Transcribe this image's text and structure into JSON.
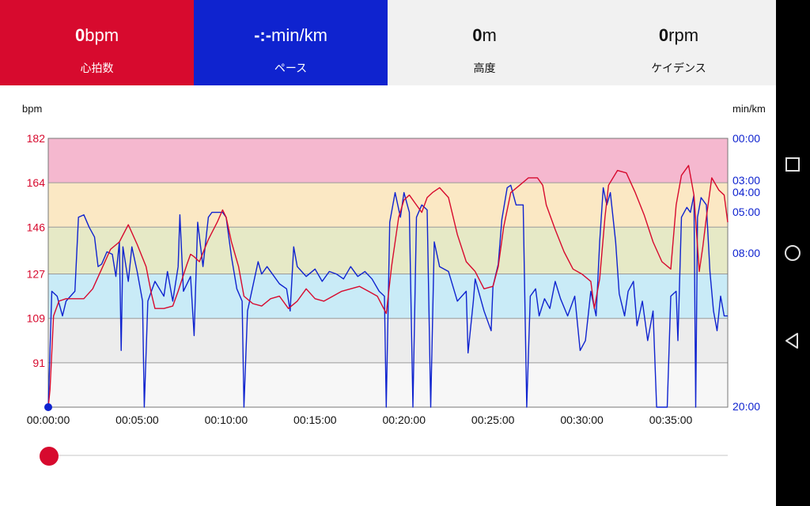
{
  "stats": [
    {
      "value": "0",
      "unit": "bpm",
      "label": "心拍数"
    },
    {
      "value": "-:-",
      "unit": "min/km",
      "label": "ペース"
    },
    {
      "value": "0",
      "unit": "m",
      "label": "高度"
    },
    {
      "value": "0",
      "unit": "rpm",
      "label": "ケイデンス"
    }
  ],
  "axis_units": {
    "left": "bpm",
    "right": "min/km"
  },
  "colors": {
    "heart_rate": "#d70a2e",
    "pace": "#0f23cf",
    "zone5": "#f5b8cf",
    "zone4": "#fbe8c4",
    "zone3": "#e6e9c6",
    "zone2": "#c9ebf7",
    "zone1": "#ececec",
    "zone0": "#f7f7f7"
  },
  "chart_data": {
    "type": "line",
    "x_ticks": [
      "00:00:00",
      "00:05:00",
      "00:10:00",
      "00:15:00",
      "00:20:00",
      "00:25:00",
      "00:30:00",
      "00:35:00"
    ],
    "x_range_minutes": [
      0,
      38.2
    ],
    "y_left_ticks": [
      "182",
      "164",
      "146",
      "127",
      "109",
      "91"
    ],
    "y_left_range": [
      73,
      182
    ],
    "y_right_ticks": [
      "00:00",
      "03:00",
      "04:00",
      "05:00",
      "08:00",
      "20:00"
    ],
    "grid": true,
    "series": [
      {
        "name": "心拍数",
        "axis": "left",
        "points": [
          [
            0,
            73
          ],
          [
            0.1,
            80
          ],
          [
            0.3,
            110
          ],
          [
            0.6,
            116
          ],
          [
            1,
            117
          ],
          [
            1.5,
            117
          ],
          [
            2,
            117
          ],
          [
            2.5,
            121
          ],
          [
            3,
            129
          ],
          [
            3.5,
            137
          ],
          [
            4,
            140
          ],
          [
            4.5,
            147
          ],
          [
            5,
            139
          ],
          [
            5.5,
            130
          ],
          [
            5.8,
            119
          ],
          [
            6,
            113
          ],
          [
            6.5,
            113
          ],
          [
            7,
            114
          ],
          [
            7.3,
            120
          ],
          [
            7.8,
            131
          ],
          [
            8,
            135
          ],
          [
            8.2,
            134
          ],
          [
            8.5,
            132
          ],
          [
            9,
            141
          ],
          [
            9.5,
            148
          ],
          [
            9.8,
            153
          ],
          [
            10,
            150
          ],
          [
            10.3,
            140
          ],
          [
            10.7,
            130
          ],
          [
            11,
            118
          ],
          [
            11.5,
            115
          ],
          [
            12,
            114
          ],
          [
            12.5,
            117
          ],
          [
            13,
            118
          ],
          [
            13.5,
            113
          ],
          [
            14,
            116
          ],
          [
            14.5,
            121
          ],
          [
            15,
            117
          ],
          [
            15.5,
            116
          ],
          [
            16,
            118
          ],
          [
            16.5,
            120
          ],
          [
            17,
            121
          ],
          [
            17.5,
            122
          ],
          [
            18,
            120
          ],
          [
            18.5,
            118
          ],
          [
            19,
            111
          ],
          [
            19.3,
            130
          ],
          [
            19.7,
            150
          ],
          [
            20,
            157
          ],
          [
            20.3,
            159
          ],
          [
            20.6,
            156
          ],
          [
            21,
            152
          ],
          [
            21.3,
            158
          ],
          [
            21.6,
            160
          ],
          [
            22,
            162
          ],
          [
            22.5,
            158
          ],
          [
            23,
            143
          ],
          [
            23.5,
            132
          ],
          [
            24,
            128
          ],
          [
            24.5,
            121
          ],
          [
            25,
            122
          ],
          [
            25.3,
            130
          ],
          [
            25.6,
            146
          ],
          [
            26,
            160
          ],
          [
            26.5,
            163
          ],
          [
            27,
            166
          ],
          [
            27.5,
            166
          ],
          [
            27.8,
            163
          ],
          [
            28,
            155
          ],
          [
            28.5,
            145
          ],
          [
            29,
            136
          ],
          [
            29.5,
            129
          ],
          [
            30,
            127
          ],
          [
            30.5,
            124
          ],
          [
            30.7,
            113
          ],
          [
            31,
            125
          ],
          [
            31.3,
            150
          ],
          [
            31.5,
            163
          ],
          [
            32,
            169
          ],
          [
            32.5,
            168
          ],
          [
            33,
            160
          ],
          [
            33.5,
            151
          ],
          [
            34,
            140
          ],
          [
            34.5,
            132
          ],
          [
            35,
            129
          ],
          [
            35.3,
            155
          ],
          [
            35.6,
            167
          ],
          [
            36,
            171
          ],
          [
            36.3,
            159
          ],
          [
            36.6,
            128
          ],
          [
            36.8,
            138
          ],
          [
            37,
            150
          ],
          [
            37.3,
            166
          ],
          [
            37.7,
            161
          ],
          [
            38,
            159
          ],
          [
            38.2,
            148
          ]
        ]
      },
      {
        "name": "ペース",
        "axis": "right",
        "points": [
          [
            0,
            73
          ],
          [
            0.2,
            120
          ],
          [
            0.5,
            118
          ],
          [
            0.8,
            110
          ],
          [
            1,
            116
          ],
          [
            1.5,
            120
          ],
          [
            1.7,
            150
          ],
          [
            2,
            151
          ],
          [
            2.3,
            146
          ],
          [
            2.6,
            142
          ],
          [
            2.8,
            130
          ],
          [
            3,
            131
          ],
          [
            3.3,
            136
          ],
          [
            3.6,
            135
          ],
          [
            3.8,
            126
          ],
          [
            4,
            140
          ],
          [
            4.1,
            96
          ],
          [
            4.2,
            138
          ],
          [
            4.5,
            124
          ],
          [
            4.7,
            138
          ],
          [
            5,
            128
          ],
          [
            5.3,
            116
          ],
          [
            5.4,
            73
          ],
          [
            5.6,
            116
          ],
          [
            6,
            124
          ],
          [
            6.5,
            118
          ],
          [
            6.7,
            128
          ],
          [
            7,
            116
          ],
          [
            7.3,
            130
          ],
          [
            7.4,
            151
          ],
          [
            7.6,
            120
          ],
          [
            8,
            126
          ],
          [
            8.2,
            102
          ],
          [
            8.4,
            148
          ],
          [
            8.7,
            130
          ],
          [
            9,
            150
          ],
          [
            9.2,
            152
          ],
          [
            9.8,
            152
          ],
          [
            10,
            150
          ],
          [
            10.3,
            134
          ],
          [
            10.6,
            121
          ],
          [
            10.9,
            116
          ],
          [
            11,
            73
          ],
          [
            11.2,
            112
          ],
          [
            11.5,
            122
          ],
          [
            11.8,
            132
          ],
          [
            12,
            127
          ],
          [
            12.3,
            130
          ],
          [
            12.7,
            126
          ],
          [
            13,
            123
          ],
          [
            13.4,
            121
          ],
          [
            13.6,
            112
          ],
          [
            13.8,
            138
          ],
          [
            14,
            130
          ],
          [
            14.5,
            126
          ],
          [
            15,
            129
          ],
          [
            15.4,
            124
          ],
          [
            15.8,
            128
          ],
          [
            16.2,
            127
          ],
          [
            16.6,
            125
          ],
          [
            17,
            130
          ],
          [
            17.4,
            126
          ],
          [
            17.8,
            128
          ],
          [
            18.2,
            125
          ],
          [
            18.6,
            120
          ],
          [
            18.9,
            118
          ],
          [
            19,
            73
          ],
          [
            19.2,
            148
          ],
          [
            19.5,
            160
          ],
          [
            19.8,
            150
          ],
          [
            20,
            160
          ],
          [
            20.3,
            152
          ],
          [
            20.5,
            73
          ],
          [
            20.7,
            150
          ],
          [
            21,
            155
          ],
          [
            21.3,
            153
          ],
          [
            21.5,
            73
          ],
          [
            21.7,
            140
          ],
          [
            22,
            130
          ],
          [
            22.5,
            128
          ],
          [
            23,
            116
          ],
          [
            23.5,
            120
          ],
          [
            23.6,
            95
          ],
          [
            23.9,
            116
          ],
          [
            24,
            125
          ],
          [
            24.5,
            112
          ],
          [
            24.9,
            104
          ],
          [
            25,
            122
          ],
          [
            25.3,
            131
          ],
          [
            25.5,
            149
          ],
          [
            25.8,
            162
          ],
          [
            26,
            163
          ],
          [
            26.3,
            155
          ],
          [
            26.7,
            155
          ],
          [
            26.9,
            73
          ],
          [
            27.1,
            118
          ],
          [
            27.4,
            121
          ],
          [
            27.6,
            110
          ],
          [
            27.9,
            117
          ],
          [
            28.2,
            113
          ],
          [
            28.5,
            124
          ],
          [
            28.8,
            117
          ],
          [
            29.2,
            110
          ],
          [
            29.6,
            118
          ],
          [
            29.9,
            96
          ],
          [
            30.2,
            100
          ],
          [
            30.5,
            120
          ],
          [
            30.8,
            110
          ],
          [
            31,
            140
          ],
          [
            31.2,
            162
          ],
          [
            31.4,
            155
          ],
          [
            31.6,
            160
          ],
          [
            31.9,
            140
          ],
          [
            32.1,
            119
          ],
          [
            32.4,
            110
          ],
          [
            32.6,
            120
          ],
          [
            32.9,
            124
          ],
          [
            33.1,
            106
          ],
          [
            33.4,
            116
          ],
          [
            33.7,
            100
          ],
          [
            34,
            112
          ],
          [
            34.2,
            73
          ],
          [
            34.8,
            73
          ],
          [
            35,
            118
          ],
          [
            35.3,
            120
          ],
          [
            35.4,
            100
          ],
          [
            35.6,
            150
          ],
          [
            35.9,
            154
          ],
          [
            36.1,
            152
          ],
          [
            36.3,
            159
          ],
          [
            36.4,
            73
          ],
          [
            36.5,
            150
          ],
          [
            36.7,
            158
          ],
          [
            37,
            155
          ],
          [
            37.2,
            128
          ],
          [
            37.4,
            112
          ],
          [
            37.6,
            104
          ],
          [
            37.8,
            118
          ],
          [
            38,
            110
          ],
          [
            38.2,
            110
          ]
        ]
      }
    ]
  }
}
